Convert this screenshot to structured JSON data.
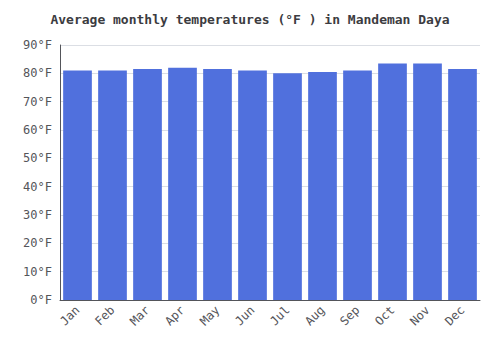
{
  "chart_data": {
    "type": "bar",
    "title": "Average monthly temperatures (°F ) in Mandeman Daya",
    "categories": [
      "Jan",
      "Feb",
      "Mar",
      "Apr",
      "May",
      "Jun",
      "Jul",
      "Aug",
      "Sep",
      "Oct",
      "Nov",
      "Dec"
    ],
    "values": [
      81,
      81,
      81.5,
      82,
      81.5,
      81,
      80,
      80.5,
      81,
      83.5,
      83.5,
      81.5
    ],
    "ylim": [
      0,
      90
    ],
    "yticks": [
      {
        "value": 0,
        "label": "0°F"
      },
      {
        "value": 10,
        "label": "10°F"
      },
      {
        "value": 20,
        "label": "20°F"
      },
      {
        "value": 30,
        "label": "30°F"
      },
      {
        "value": 40,
        "label": "40°F"
      },
      {
        "value": 50,
        "label": "50°F"
      },
      {
        "value": 60,
        "label": "60°F"
      },
      {
        "value": 70,
        "label": "70°F"
      },
      {
        "value": 80,
        "label": "80°F"
      },
      {
        "value": 90,
        "label": "90°F"
      }
    ],
    "grid": true
  }
}
